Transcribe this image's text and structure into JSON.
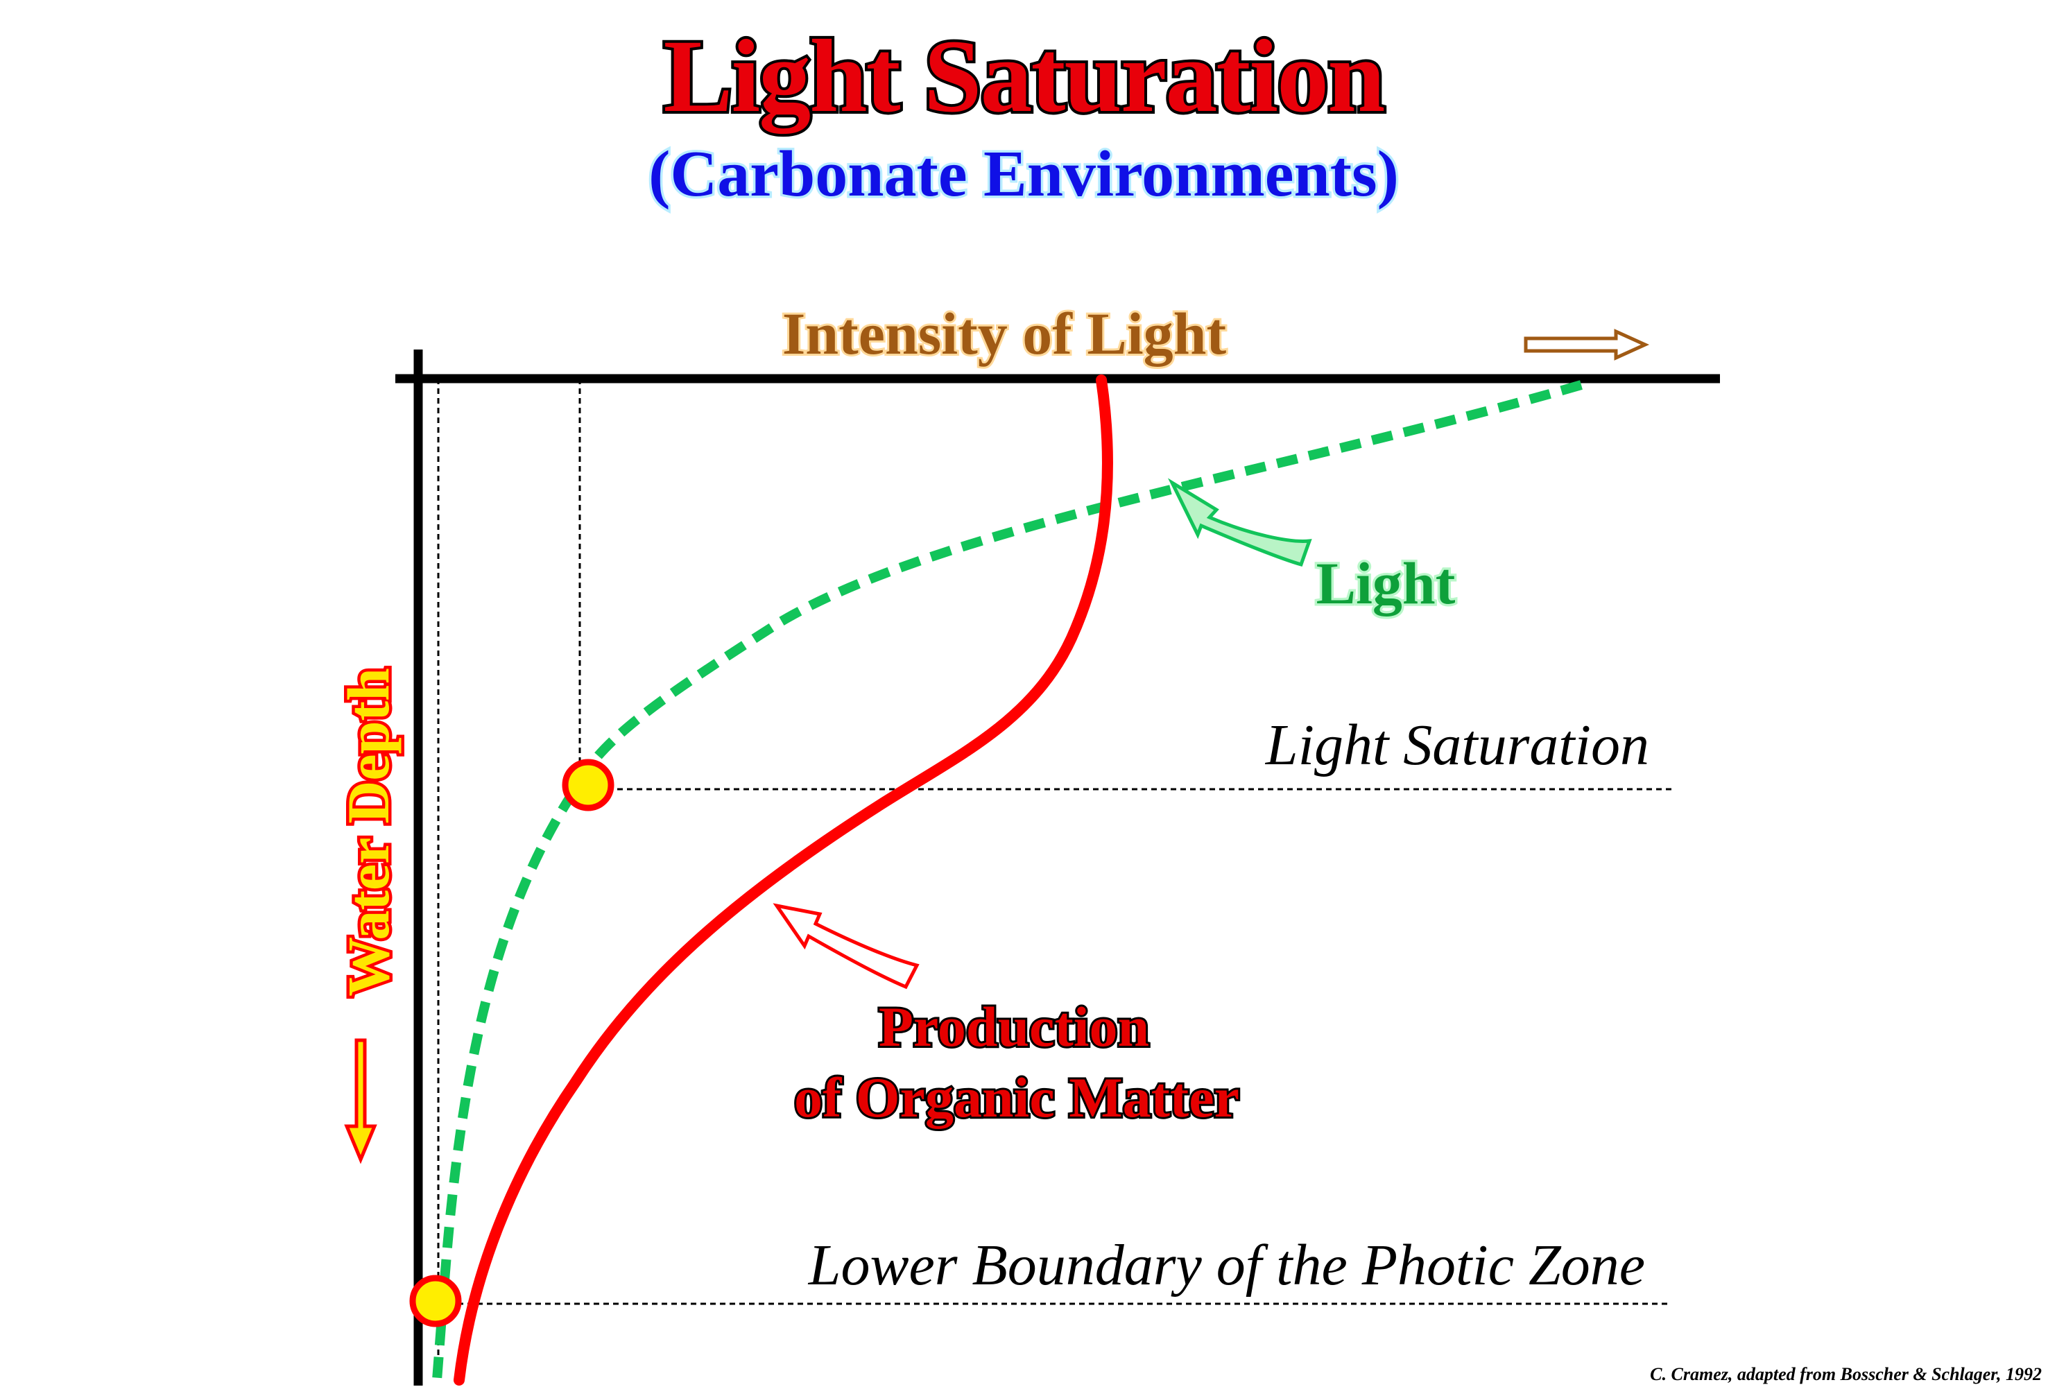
{
  "title": "Light Saturation",
  "subtitle": "(Carbonate Environments)",
  "x_axis_label": "Intensity of Light",
  "y_axis_label": "Water Depth",
  "curve_labels": {
    "light": "Light",
    "production_line1": "Production",
    "production_line2": "of Organic Matter"
  },
  "level_labels": {
    "light_saturation": "Light Saturation",
    "photic_lower_boundary": "Lower Boundary of the Photic Zone"
  },
  "credit": "C. Cramez, adapted from  Bosscher & Schlager, 1992",
  "colors": {
    "title_fill": "#e8000a",
    "subtitle_fill": "#1010e6",
    "x_label_fill": "#a05a14",
    "y_label_fill": "#ffe600",
    "y_label_outline": "#ff0000",
    "light_curve": "#12c45a",
    "light_label": "#0ea03a",
    "production_curve": "#ff0000",
    "production_label": "#e60000",
    "marker_fill": "#ffee00",
    "marker_outline": "#ff0000",
    "axes": "#000000"
  }
}
